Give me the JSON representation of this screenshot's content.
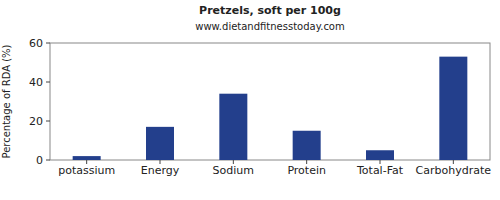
{
  "chart_data": {
    "type": "bar",
    "title": "Pretzels, soft per 100g",
    "subtitle": "www.dietandfitnesstoday.com",
    "y_label": "Percentage of RDA (%)",
    "categories": [
      "potassium",
      "Energy",
      "Sodium",
      "Protein",
      "Total-Fat",
      "Carbohydrate"
    ],
    "values": [
      2,
      17,
      34,
      15,
      5,
      53
    ],
    "color": "#233f8c",
    "ylim": [
      0,
      60
    ],
    "yticks": [
      0,
      20,
      40,
      60
    ],
    "grid": false
  }
}
